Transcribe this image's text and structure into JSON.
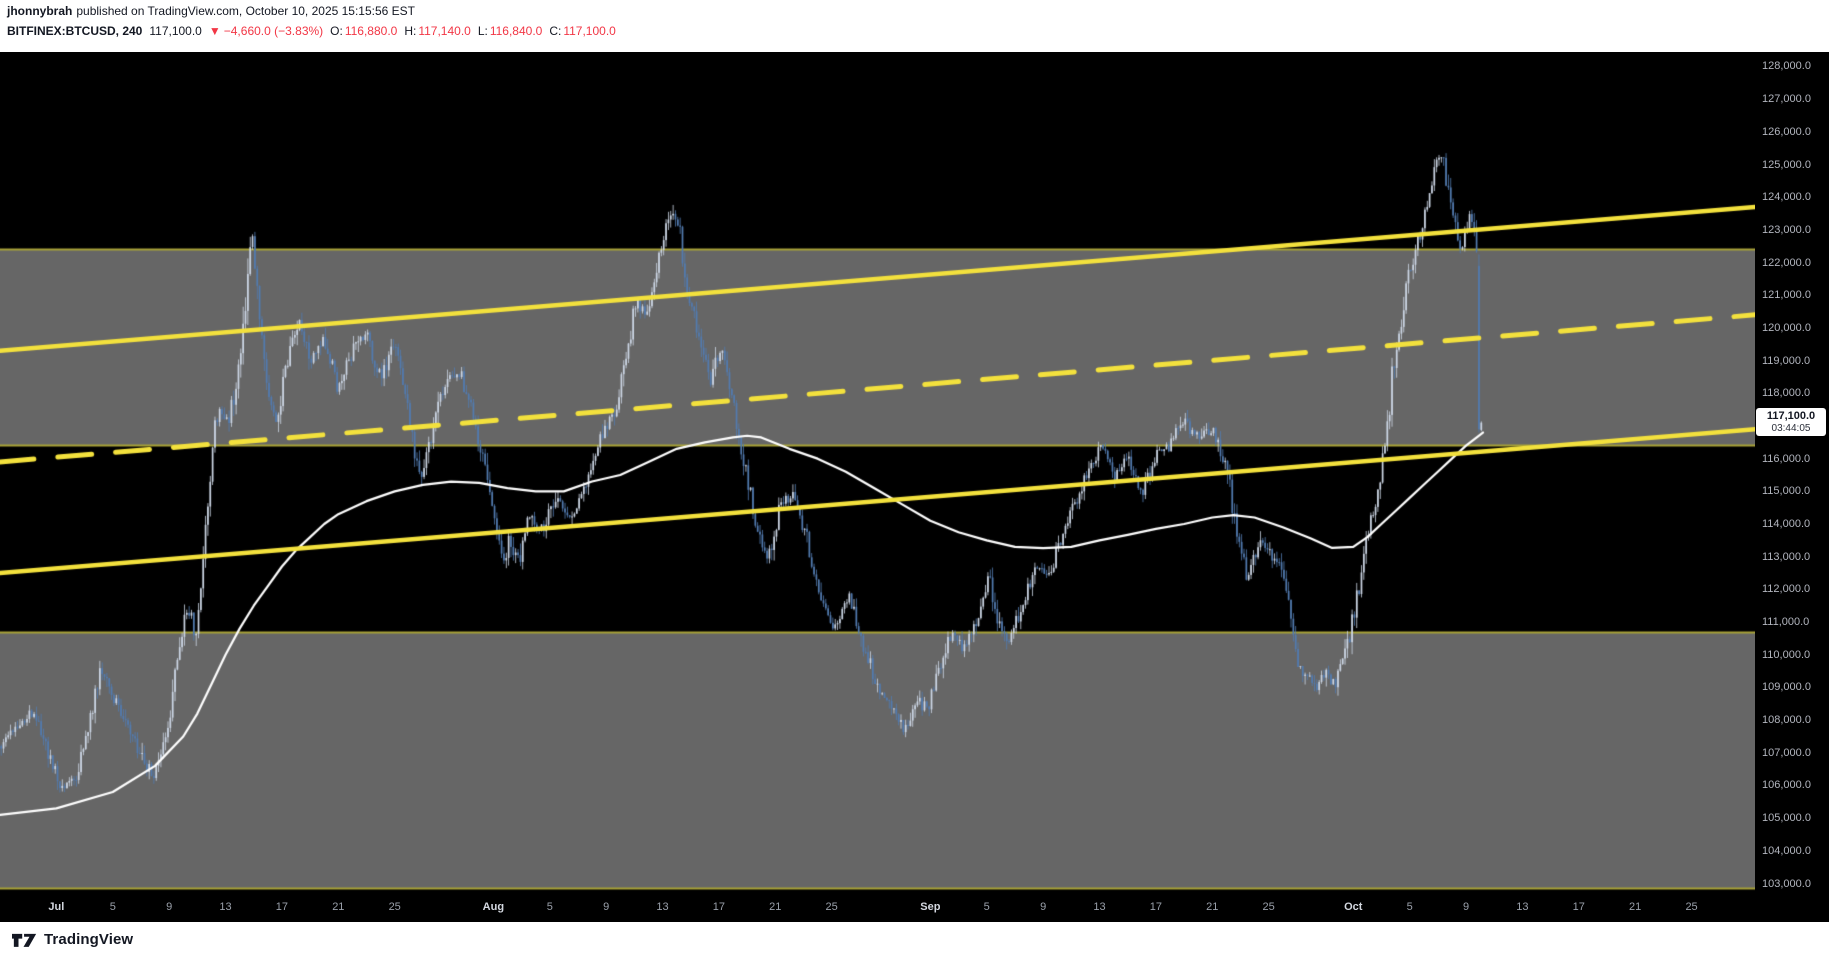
{
  "header": {
    "author": "jhonnybrah",
    "published_text": "published on TradingView.com, October 10, 2025 15:15:56 EST",
    "symbol": "BITFINEX:BTCUSD, 240",
    "last_price": "117,100.0",
    "direction_icon": "▼",
    "change": "−4,660.0 (−3.83%)",
    "ohlc": [
      {
        "label": "O:",
        "value": "116,880.0"
      },
      {
        "label": "H:",
        "value": "117,140.0"
      },
      {
        "label": "L:",
        "value": "116,840.0"
      },
      {
        "label": "C:",
        "value": "117,100.0"
      }
    ]
  },
  "price_label": {
    "price": "117,100.0",
    "countdown": "03:44:05"
  },
  "footer": {
    "brand": "TradingView"
  },
  "colors": {
    "background": "#000000",
    "band_fill": "#6f6f6f",
    "band_border": "#a8a238",
    "channel_yellow": "#f3e13d",
    "candle_up": "#cdd7e6",
    "candle_down": "#527bb0",
    "ma_line": "#ffffff",
    "negative": "#f23645"
  },
  "chart_data": {
    "type": "candlestick",
    "symbol": "BITFINEX:BTCUSD",
    "interval_minutes": 240,
    "current_price": 117100,
    "ohlc_last": {
      "open": 116880,
      "high": 117140,
      "low": 116840,
      "close": 117100
    },
    "change": -4660.0,
    "change_pct": -3.83,
    "y_axis": {
      "p_top": 128443,
      "p_bottom": 102710,
      "ticks": [
        {
          "value": 103000,
          "label": "103,000.0"
        },
        {
          "value": 104000,
          "label": "104,000.0"
        },
        {
          "value": 105000,
          "label": "105,000.0"
        },
        {
          "value": 106000,
          "label": "106,000.0"
        },
        {
          "value": 107000,
          "label": "107,000.0"
        },
        {
          "value": 108000,
          "label": "108,000.0"
        },
        {
          "value": 109000,
          "label": "109,000.0"
        },
        {
          "value": 110000,
          "label": "110,000.0"
        },
        {
          "value": 111000,
          "label": "111,000.0"
        },
        {
          "value": 112000,
          "label": "112,000.0"
        },
        {
          "value": 113000,
          "label": "113,000.0"
        },
        {
          "value": 114000,
          "label": "114,000.0"
        },
        {
          "value": 115000,
          "label": "115,000.0"
        },
        {
          "value": 116000,
          "label": "116,000.0"
        },
        {
          "value": 117000,
          "label": "117,000.0"
        },
        {
          "value": 118000,
          "label": "118,000.0"
        },
        {
          "value": 119000,
          "label": "119,000.0"
        },
        {
          "value": 120000,
          "label": "120,000.0"
        },
        {
          "value": 121000,
          "label": "121,000.0"
        },
        {
          "value": 122000,
          "label": "122,000.0"
        },
        {
          "value": 123000,
          "label": "123,000.0"
        },
        {
          "value": 124000,
          "label": "124,000.0"
        },
        {
          "value": 125000,
          "label": "125,000.0"
        },
        {
          "value": 126000,
          "label": "126,000.0"
        },
        {
          "value": 127000,
          "label": "127,000.0"
        },
        {
          "value": 128000,
          "label": "128,000.0"
        }
      ]
    },
    "x_axis": {
      "min_day": 0,
      "max_day": 124.5,
      "day0_date": "Jun 27"
    },
    "x_ticks": [
      {
        "label": "Jul",
        "day": 4,
        "month": true
      },
      {
        "label": "5",
        "day": 8,
        "month": false
      },
      {
        "label": "9",
        "day": 12,
        "month": false
      },
      {
        "label": "13",
        "day": 16,
        "month": false
      },
      {
        "label": "17",
        "day": 20,
        "month": false
      },
      {
        "label": "21",
        "day": 24,
        "month": false
      },
      {
        "label": "25",
        "day": 28,
        "month": false
      },
      {
        "label": "Aug",
        "day": 35,
        "month": true
      },
      {
        "label": "5",
        "day": 39,
        "month": false
      },
      {
        "label": "9",
        "day": 43,
        "month": false
      },
      {
        "label": "13",
        "day": 47,
        "month": false
      },
      {
        "label": "17",
        "day": 51,
        "month": false
      },
      {
        "label": "21",
        "day": 55,
        "month": false
      },
      {
        "label": "25",
        "day": 59,
        "month": false
      },
      {
        "label": "Sep",
        "day": 66,
        "month": true
      },
      {
        "label": "5",
        "day": 70,
        "month": false
      },
      {
        "label": "9",
        "day": 74,
        "month": false
      },
      {
        "label": "13",
        "day": 78,
        "month": false
      },
      {
        "label": "17",
        "day": 82,
        "month": false
      },
      {
        "label": "21",
        "day": 86,
        "month": false
      },
      {
        "label": "25",
        "day": 90,
        "month": false
      },
      {
        "label": "Oct",
        "day": 96,
        "month": true
      },
      {
        "label": "5",
        "day": 100,
        "month": false
      },
      {
        "label": "9",
        "day": 104,
        "month": false
      },
      {
        "label": "13",
        "day": 108,
        "month": false
      },
      {
        "label": "17",
        "day": 112,
        "month": false
      },
      {
        "label": "21",
        "day": 116,
        "month": false
      },
      {
        "label": "25",
        "day": 120,
        "month": false
      }
    ],
    "bands": [
      {
        "from": 116400,
        "to": 122400
      },
      {
        "from": 102850,
        "to": 110680
      }
    ],
    "channel_lines": [
      {
        "name": "upper",
        "style": "solid",
        "price_left": 119300,
        "price_right": 123700
      },
      {
        "name": "middle",
        "style": "dashed",
        "price_left": 115900,
        "price_right": 120400
      },
      {
        "name": "lower",
        "style": "solid",
        "price_left": 112500,
        "price_right": 116900
      }
    ],
    "ma_path": [
      [
        0,
        105.1
      ],
      [
        4,
        105.3
      ],
      [
        8,
        105.8
      ],
      [
        11,
        106.6
      ],
      [
        13,
        107.5
      ],
      [
        14,
        108.2
      ],
      [
        15,
        109.1
      ],
      [
        16,
        110.0
      ],
      [
        17,
        110.8
      ],
      [
        18,
        111.5
      ],
      [
        19,
        112.1
      ],
      [
        20,
        112.7
      ],
      [
        21,
        113.2
      ],
      [
        22,
        113.6
      ],
      [
        23,
        114.0
      ],
      [
        24,
        114.3
      ],
      [
        25,
        114.5
      ],
      [
        26,
        114.7
      ],
      [
        28,
        115.0
      ],
      [
        30,
        115.2
      ],
      [
        32,
        115.3
      ],
      [
        34,
        115.26
      ],
      [
        36,
        115.1
      ],
      [
        38,
        115.0
      ],
      [
        40,
        115.0
      ],
      [
        42,
        115.3
      ],
      [
        44,
        115.5
      ],
      [
        46,
        115.9
      ],
      [
        48,
        116.3
      ],
      [
        50,
        116.5
      ],
      [
        52,
        116.65
      ],
      [
        53,
        116.7
      ],
      [
        54,
        116.65
      ],
      [
        56,
        116.3
      ],
      [
        58,
        116.0
      ],
      [
        60,
        115.6
      ],
      [
        62,
        115.1
      ],
      [
        64,
        114.6
      ],
      [
        66,
        114.1
      ],
      [
        68,
        113.75
      ],
      [
        70,
        113.5
      ],
      [
        72,
        113.3
      ],
      [
        74,
        113.26
      ],
      [
        76,
        113.3
      ],
      [
        78,
        113.5
      ],
      [
        80,
        113.67
      ],
      [
        82,
        113.85
      ],
      [
        84,
        114.0
      ],
      [
        86,
        114.2
      ],
      [
        87.5,
        114.27
      ],
      [
        89,
        114.2
      ],
      [
        91,
        113.9
      ],
      [
        93,
        113.56
      ],
      [
        94.5,
        113.27
      ],
      [
        96,
        113.3
      ],
      [
        97,
        113.6
      ],
      [
        98,
        114.0
      ],
      [
        99,
        114.4
      ],
      [
        100,
        114.8
      ],
      [
        101,
        115.2
      ],
      [
        102,
        115.6
      ],
      [
        103,
        116.0
      ],
      [
        104,
        116.4
      ],
      [
        105.2,
        116.8
      ]
    ],
    "price_path": [
      [
        0,
        107.2
      ],
      [
        1,
        107.8
      ],
      [
        2.5,
        108.3
      ],
      [
        3.5,
        106.8
      ],
      [
        4.5,
        105.9
      ],
      [
        5.5,
        106.3
      ],
      [
        6.5,
        108.2
      ],
      [
        7.2,
        109.7
      ],
      [
        8,
        108.7
      ],
      [
        9,
        107.8
      ],
      [
        10,
        106.9
      ],
      [
        10.8,
        106.3
      ],
      [
        12,
        108.0
      ],
      [
        12.8,
        110.6
      ],
      [
        13.4,
        111.5
      ],
      [
        13.9,
        110.4
      ],
      [
        14.4,
        112.5
      ],
      [
        15,
        116.2
      ],
      [
        15.5,
        117.5
      ],
      [
        16.2,
        117.0
      ],
      [
        17,
        119.0
      ],
      [
        17.6,
        121.8
      ],
      [
        18,
        122.9
      ],
      [
        18.4,
        120.6
      ],
      [
        19,
        117.8
      ],
      [
        19.6,
        116.9
      ],
      [
        20.5,
        119.2
      ],
      [
        21.2,
        120.3
      ],
      [
        22,
        118.9
      ],
      [
        23,
        119.6
      ],
      [
        24,
        118.2
      ],
      [
        25,
        119.3
      ],
      [
        26,
        119.9
      ],
      [
        27,
        118.4
      ],
      [
        28,
        119.5
      ],
      [
        29,
        117.4
      ],
      [
        29.8,
        115.4
      ],
      [
        30.6,
        116.6
      ],
      [
        31.5,
        118.2
      ],
      [
        32.5,
        118.8
      ],
      [
        33.5,
        117.4
      ],
      [
        34.4,
        115.6
      ],
      [
        35.2,
        113.9
      ],
      [
        35.7,
        112.8
      ],
      [
        36.2,
        113.6
      ],
      [
        36.7,
        112.7
      ],
      [
        37.5,
        114.2
      ],
      [
        38.5,
        113.8
      ],
      [
        39.5,
        114.9
      ],
      [
        40.5,
        114.3
      ],
      [
        41.5,
        115.2
      ],
      [
        42.5,
        116.5
      ],
      [
        43.5,
        117.3
      ],
      [
        44.5,
        119.2
      ],
      [
        45.2,
        121.0
      ],
      [
        45.8,
        120.3
      ],
      [
        46.6,
        122.0
      ],
      [
        47.4,
        123.2
      ],
      [
        48.1,
        123.5
      ],
      [
        48.7,
        121.4
      ],
      [
        49.5,
        119.7
      ],
      [
        50.5,
        118.4
      ],
      [
        51.1,
        119.4
      ],
      [
        52,
        117.6
      ],
      [
        53,
        115.5
      ],
      [
        54,
        113.4
      ],
      [
        54.5,
        112.8
      ],
      [
        55.4,
        114.7
      ],
      [
        56.4,
        114.9
      ],
      [
        57.4,
        113.3
      ],
      [
        58.4,
        111.4
      ],
      [
        59.3,
        110.8
      ],
      [
        60.3,
        111.9
      ],
      [
        61.3,
        110.2
      ],
      [
        62.3,
        109.0
      ],
      [
        63.3,
        108.4
      ],
      [
        64.2,
        107.7
      ],
      [
        65,
        108.7
      ],
      [
        65.8,
        108.3
      ],
      [
        66.5,
        109.4
      ],
      [
        67.5,
        110.6
      ],
      [
        68.5,
        110.1
      ],
      [
        69.5,
        111.3
      ],
      [
        70.2,
        112.3
      ],
      [
        70.9,
        110.9
      ],
      [
        71.6,
        110.3
      ],
      [
        72.5,
        111.5
      ],
      [
        73.5,
        112.8
      ],
      [
        74.5,
        112.4
      ],
      [
        75.5,
        113.9
      ],
      [
        76.5,
        114.9
      ],
      [
        77.5,
        115.9
      ],
      [
        78.2,
        116.4
      ],
      [
        79,
        115.4
      ],
      [
        80,
        116.0
      ],
      [
        81,
        114.9
      ],
      [
        82,
        116.1
      ],
      [
        83,
        116.4
      ],
      [
        84,
        117.2
      ],
      [
        85,
        116.6
      ],
      [
        86,
        116.9
      ],
      [
        87,
        115.8
      ],
      [
        87.8,
        113.6
      ],
      [
        88.5,
        112.4
      ],
      [
        89.5,
        113.5
      ],
      [
        90.5,
        112.9
      ],
      [
        91.3,
        112.0
      ],
      [
        91.9,
        109.9
      ],
      [
        92.6,
        109.4
      ],
      [
        93.3,
        108.9
      ],
      [
        94,
        109.4
      ],
      [
        94.8,
        109.1
      ],
      [
        95.6,
        110.3
      ],
      [
        96.4,
        112.0
      ],
      [
        97,
        113.6
      ],
      [
        97.6,
        114.6
      ],
      [
        98.2,
        116.1
      ],
      [
        98.8,
        118.6
      ],
      [
        99.4,
        120.2
      ],
      [
        100,
        121.7
      ],
      [
        100.6,
        122.6
      ],
      [
        101.2,
        123.6
      ],
      [
        101.8,
        125.0
      ],
      [
        102.2,
        125.5
      ],
      [
        102.7,
        124.4
      ],
      [
        103.2,
        123.2
      ],
      [
        103.7,
        122.5
      ],
      [
        104.2,
        123.4
      ],
      [
        104.6,
        123.1
      ],
      [
        104.9,
        121.9
      ],
      [
        105,
        119.5
      ]
    ],
    "candles_per_day": 6,
    "total_days": 105.2,
    "seed": 1337,
    "clamp_high": 126050,
    "clamp_low": 102900,
    "final_candles": [
      {
        "open": 121900,
        "high": 122250,
        "low": 116800,
        "close": 116900
      },
      {
        "open": 116880,
        "high": 117140,
        "low": 116840,
        "close": 117100
      }
    ]
  }
}
